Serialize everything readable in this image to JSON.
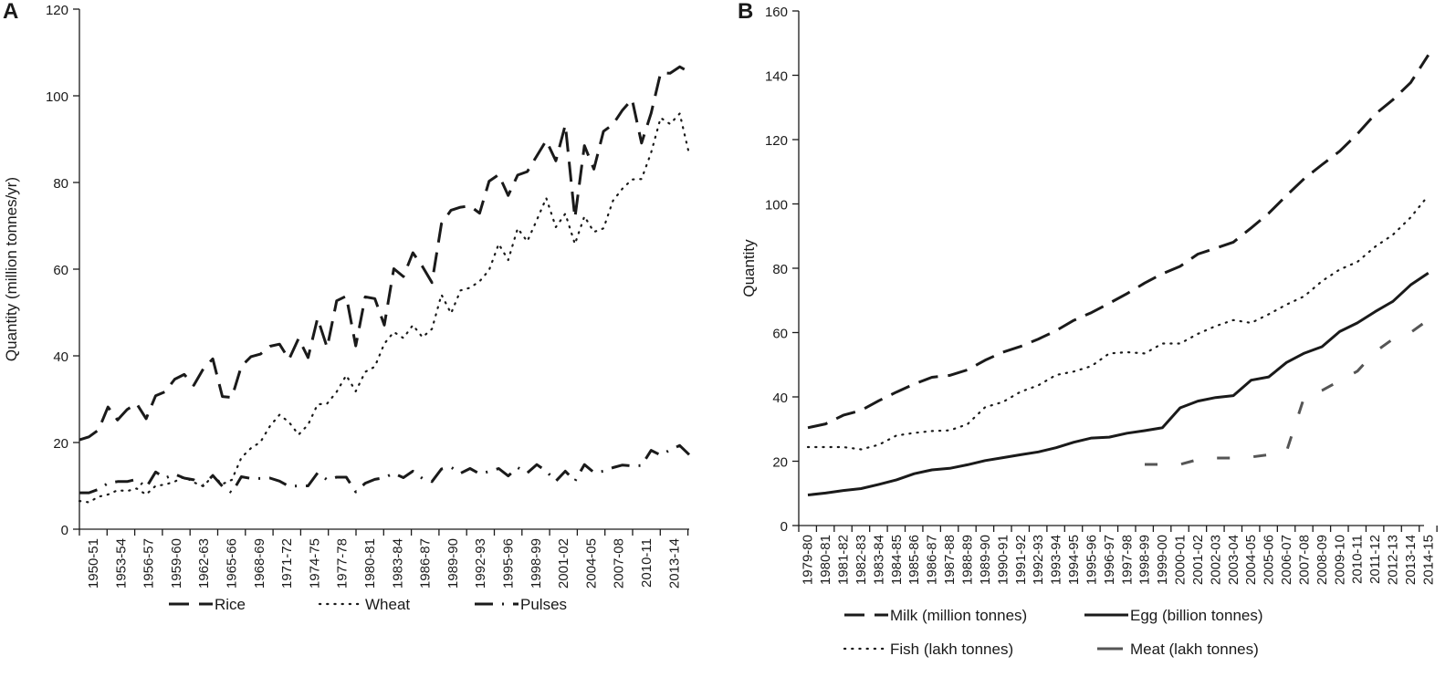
{
  "chart_data": [
    {
      "panel": "A",
      "type": "line",
      "ylabel": "Quantity (million tonnes/yr)",
      "ylim": [
        0,
        120
      ],
      "yticks": [
        0,
        20,
        40,
        60,
        80,
        100,
        120
      ],
      "x_tick_labels": [
        "1950-51",
        "1953-54",
        "1956-57",
        "1959-60",
        "1962-63",
        "1965-66",
        "1968-69",
        "1971-72",
        "1974-75",
        "1977-78",
        "1980-81",
        "1983-84",
        "1986-87",
        "1989-90",
        "1992-93",
        "1995-96",
        "1998-99",
        "2001-02",
        "2004-05",
        "2007-08",
        "2010-11",
        "2013-14"
      ],
      "n_points": 65,
      "series": [
        {
          "name": "Rice",
          "style": "dashed",
          "color": "#1a1a1a",
          "values": [
            20.6,
            21.3,
            22.9,
            28.2,
            25.2,
            27.6,
            29.0,
            25.5,
            30.8,
            31.7,
            34.6,
            35.7,
            33.2,
            37.0,
            39.3,
            30.6,
            30.4,
            37.6,
            39.8,
            40.4,
            42.2,
            42.7,
            39.2,
            44.0,
            39.6,
            48.7,
            41.9,
            52.7,
            53.8,
            42.3,
            53.6,
            53.2,
            47.1,
            60.1,
            58.3,
            63.8,
            60.6,
            56.9,
            70.5,
            73.6,
            74.3,
            74.6,
            72.9,
            80.3,
            81.8,
            77.0,
            81.7,
            82.5,
            86.1,
            89.7,
            85.0,
            93.3,
            71.8,
            88.5,
            83.1,
            91.8,
            93.4,
            96.7,
            99.2,
            89.1,
            96.0,
            105.3,
            105.2,
            106.7,
            105.5
          ]
        },
        {
          "name": "Wheat",
          "style": "dotted",
          "color": "#1a1a1a",
          "values": [
            6.5,
            6.2,
            7.5,
            8.0,
            9.0,
            8.8,
            9.4,
            8.0,
            10.0,
            10.3,
            11.0,
            12.1,
            10.8,
            9.9,
            12.3,
            10.4,
            11.4,
            16.5,
            18.7,
            20.1,
            23.8,
            26.4,
            24.7,
            21.8,
            24.1,
            28.8,
            29.0,
            31.7,
            35.5,
            31.8,
            36.3,
            37.5,
            42.8,
            45.5,
            44.1,
            47.1,
            44.3,
            46.2,
            54.1,
            49.8,
            55.1,
            55.7,
            57.2,
            59.8,
            65.8,
            62.1,
            69.4,
            66.4,
            71.3,
            76.4,
            69.7,
            72.8,
            65.8,
            72.2,
            68.6,
            69.4,
            75.8,
            78.6,
            80.7,
            80.8,
            86.9,
            94.9,
            93.5,
            95.9,
            86.5
          ]
        },
        {
          "name": "Pulses",
          "style": "dashdot",
          "color": "#1a1a1a",
          "values": [
            8.4,
            8.4,
            9.2,
            10.6,
            11.0,
            11.0,
            11.5,
            9.6,
            13.2,
            11.8,
            12.7,
            11.8,
            11.4,
            10.1,
            12.4,
            9.9,
            8.4,
            12.1,
            11.7,
            11.7,
            11.8,
            11.1,
            9.9,
            10.0,
            10.0,
            13.0,
            11.4,
            12.0,
            12.0,
            8.6,
            10.6,
            11.5,
            11.9,
            12.9,
            11.9,
            13.4,
            11.7,
            11.0,
            13.9,
            14.3,
            12.9,
            14.0,
            12.8,
            13.3,
            14.0,
            12.3,
            14.2,
            13.0,
            14.9,
            13.4,
            11.1,
            13.4,
            11.1,
            14.9,
            13.1,
            13.4,
            14.2,
            14.8,
            14.6,
            14.7,
            18.2,
            17.1,
            18.3,
            19.3,
            17.2
          ]
        }
      ]
    },
    {
      "panel": "B",
      "type": "line",
      "ylabel": "Quantity",
      "ylim": [
        0,
        160
      ],
      "yticks": [
        0,
        20,
        40,
        60,
        80,
        100,
        120,
        140,
        160
      ],
      "x_tick_labels": [
        "1979-80",
        "1980-81",
        "1981-82",
        "1982-83",
        "1983-84",
        "1984-85",
        "1985-86",
        "1986-87",
        "1987-88",
        "1988-89",
        "1989-90",
        "1990-91",
        "1991-92",
        "1992-93",
        "1993-94",
        "1994-95",
        "1995-96",
        "1996-97",
        "1997-98",
        "1998-99",
        "1999-00",
        "2000-01",
        "2001-02",
        "2002-03",
        "2003-04",
        "2004-05",
        "2005-06",
        "2006-07",
        "2007-08",
        "2008-09",
        "2009-10",
        "2010-11",
        "2011-12",
        "2012-13",
        "2013-14",
        "2014-15"
      ],
      "series": [
        {
          "name": "Milk (million tonnes)",
          "style": "dashed",
          "color": "#1a1a1a",
          "values": [
            30.4,
            31.6,
            34.3,
            35.8,
            38.8,
            41.5,
            44.0,
            46.1,
            46.7,
            48.4,
            51.4,
            53.9,
            55.7,
            58.0,
            60.6,
            63.8,
            66.2,
            69.1,
            72.1,
            75.4,
            78.3,
            80.6,
            84.4,
            86.2,
            88.1,
            92.5,
            97.1,
            102.6,
            107.9,
            112.2,
            116.4,
            121.8,
            127.9,
            132.4,
            137.7,
            146.3
          ]
        },
        {
          "name": "Egg (billion tonnes)",
          "style": "solid",
          "color": "#1a1a1a",
          "values": [
            9.5,
            10.1,
            10.9,
            11.5,
            12.8,
            14.2,
            16.1,
            17.3,
            17.8,
            18.9,
            20.2,
            21.1,
            22.0,
            22.9,
            24.2,
            25.9,
            27.2,
            27.5,
            28.7,
            29.5,
            30.4,
            36.6,
            38.7,
            39.8,
            40.4,
            45.2,
            46.2,
            50.7,
            53.6,
            55.6,
            60.3,
            63.0,
            66.5,
            69.7,
            74.8,
            78.5
          ]
        },
        {
          "name": "Fish (lakh tonnes)",
          "style": "dotted",
          "color": "#1a1a1a",
          "values": [
            24.4,
            24.4,
            24.4,
            23.7,
            25.1,
            28.0,
            28.8,
            29.4,
            29.6,
            31.5,
            36.8,
            38.4,
            41.6,
            43.6,
            46.8,
            47.9,
            49.6,
            53.5,
            53.9,
            53.5,
            56.6,
            56.6,
            59.6,
            62.0,
            63.9,
            63.0,
            65.7,
            68.7,
            71.3,
            76.0,
            79.6,
            82.0,
            86.7,
            90.4,
            95.8,
            102.6
          ]
        },
        {
          "name": "Meat (lakh tonnes)",
          "style": "longdash",
          "color": "#555555",
          "values": [
            null,
            null,
            null,
            null,
            null,
            null,
            null,
            null,
            null,
            null,
            null,
            null,
            null,
            null,
            null,
            null,
            null,
            null,
            null,
            19.0,
            19.0,
            19.0,
            20.5,
            21.0,
            21.0,
            21.3,
            22.0,
            23.0,
            40.0,
            42.0,
            45.0,
            48.0,
            54.0,
            58.0,
            60.0,
            64.0
          ]
        }
      ]
    }
  ]
}
